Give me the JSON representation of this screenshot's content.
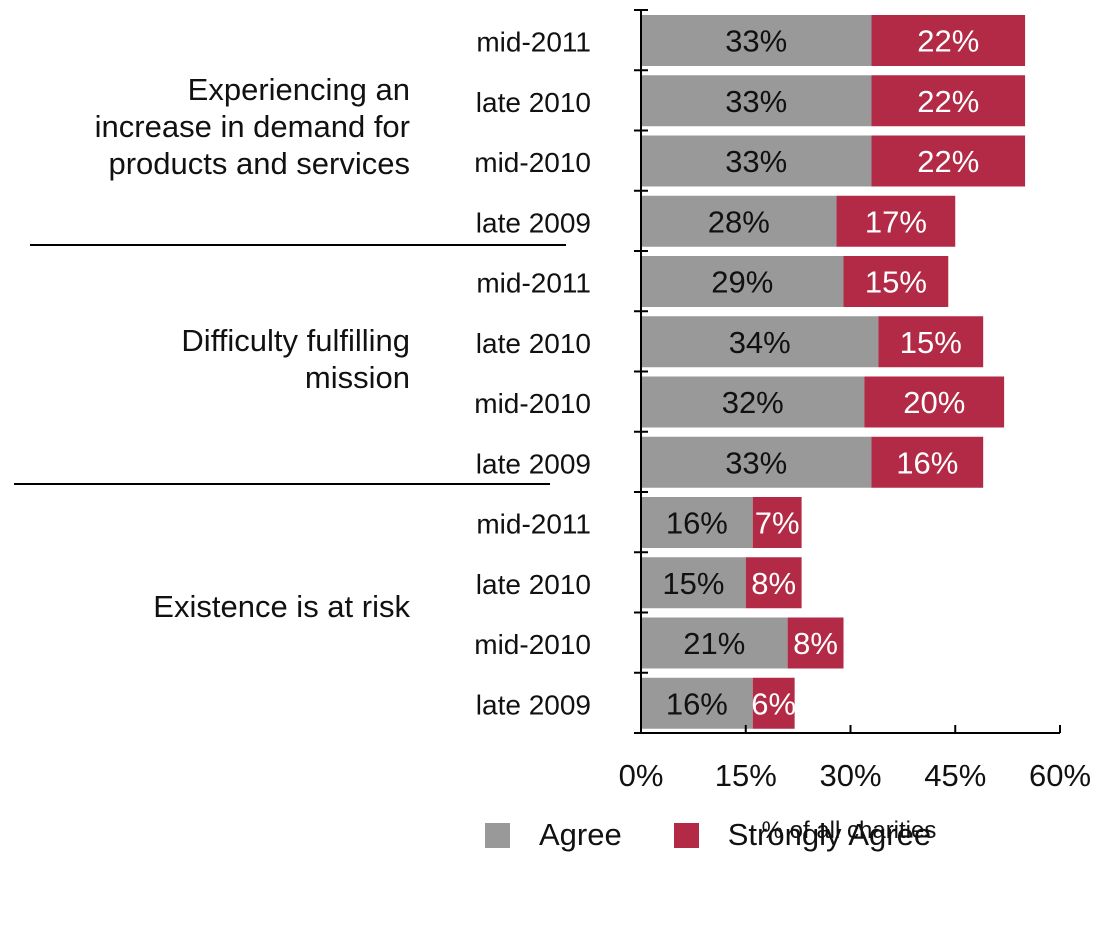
{
  "chart_data": {
    "type": "bar",
    "orientation": "horizontal",
    "stacked": true,
    "groups": [
      {
        "label": "Experiencing an increase in demand for products and services",
        "periods": [
          "mid-2011",
          "late 2010",
          "mid-2010",
          "late 2009"
        ],
        "agree": [
          33,
          33,
          33,
          28
        ],
        "strongly_agree": [
          22,
          22,
          22,
          17
        ]
      },
      {
        "label": "Difficulty fulfilling mission",
        "periods": [
          "mid-2011",
          "late 2010",
          "mid-2010",
          "late 2009"
        ],
        "agree": [
          29,
          34,
          32,
          33
        ],
        "strongly_agree": [
          15,
          15,
          20,
          16
        ]
      },
      {
        "label": "Existence is at risk",
        "periods": [
          "mid-2011",
          "late 2010",
          "mid-2010",
          "late 2009"
        ],
        "agree": [
          16,
          15,
          21,
          16
        ],
        "strongly_agree": [
          7,
          8,
          8,
          6
        ]
      }
    ],
    "series": [
      {
        "name": "Agree",
        "color": "#999999"
      },
      {
        "name": "Strongly Agree",
        "color": "#b22a45"
      }
    ],
    "xlabel": "% of all charities",
    "xlim": [
      0,
      60
    ],
    "xticks": [
      "0%",
      "15%",
      "30%",
      "45%",
      "60%"
    ],
    "value_suffix": "%",
    "legend": "bottom"
  }
}
